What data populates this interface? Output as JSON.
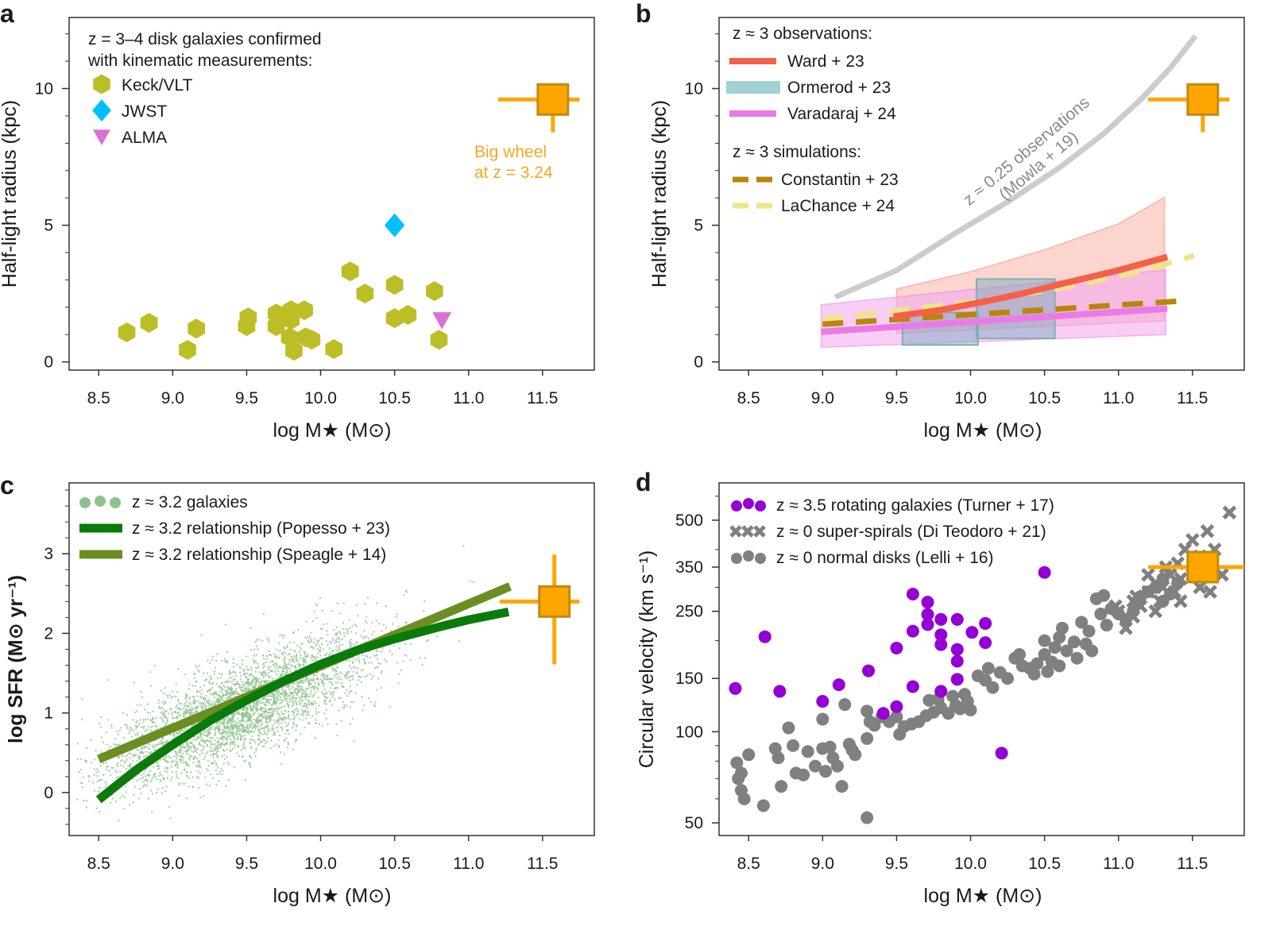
{
  "colors": {
    "keck": "#bdbd26",
    "jwst": "#00bfff",
    "alma": "#da70d6",
    "bigwheel": "#ffa500",
    "bigwheel_edge": "#c08a10",
    "ward": "#f5604a",
    "ward_band": "#f9b3a8",
    "ormerod": "#8cc4c8",
    "varadaraj": "#e97be6",
    "varadaraj_band": "#f2a6f0",
    "constantin": "#b8860b",
    "lachance": "#efe48c",
    "mowla": "#cccccc",
    "scatter": "#8fc08f",
    "popesso": "#0a7a0a",
    "speagle": "#6b8e23",
    "turner": "#9400d3",
    "lelli": "#808080",
    "diteodoro": "#808080"
  },
  "panels": {
    "a": {
      "letter": "a",
      "xlabel": "log M★ (M⊙)",
      "ylabel": "Half-light radius (kpc)",
      "legend_title_1": "z = 3–4 disk galaxies confirmed",
      "legend_title_2": "with kinematic measurements:",
      "legend": [
        "Keck/VLT",
        "JWST",
        "ALMA"
      ],
      "annotation_1": "Big wheel",
      "annotation_2": "at z = 3.24"
    },
    "b": {
      "letter": "b",
      "xlabel": "log M★ (M⊙)",
      "ylabel": "Half-light radius (kpc)",
      "obs_title": "z ≈ 3 observations:",
      "sim_title": "z ≈ 3 simulations:",
      "legend": [
        "Ward + 23",
        "Ormerod + 23",
        "Varadaraj + 24",
        "Constantin + 23",
        "LaChance + 24"
      ],
      "annotation_1": "z ≈ 0.25 observations",
      "annotation_2": "(Mowla + 19)"
    },
    "c": {
      "letter": "c",
      "xlabel": "log M★ (M⊙)",
      "ylabel": "log SFR (M⊙ yr⁻¹)",
      "legend": [
        "z ≈ 3.2 galaxies",
        "z ≈ 3.2 relationship (Popesso + 23)",
        "z ≈ 3.2 relationship (Speagle + 14)"
      ]
    },
    "d": {
      "letter": "d",
      "xlabel": "log M★ (M⊙)",
      "ylabel": "Circular velocity (km s⁻¹)",
      "legend": [
        "z ≈ 3.5 rotating galaxies (Turner + 17)",
        "z ≈ 0 super-spirals (Di Teodoro + 21)",
        "z ≈ 0 normal disks (Lelli + 16)"
      ]
    }
  },
  "chart_data": [
    {
      "id": "a",
      "type": "scatter",
      "xlim": [
        8.3,
        11.85
      ],
      "ylim": [
        -0.3,
        12.6
      ],
      "xticks": [
        "8.5",
        "9.0",
        "9.5",
        "10.0",
        "10.5",
        "11.0",
        "11.5"
      ],
      "yticks": [
        "0",
        "5",
        "10"
      ],
      "yminor_step": 1,
      "series": [
        {
          "name": "Keck/VLT",
          "marker": "hexagon",
          "color": "keck",
          "points": [
            [
              8.69,
              1.08
            ],
            [
              8.84,
              1.43
            ],
            [
              9.1,
              0.44
            ],
            [
              9.16,
              1.22
            ],
            [
              9.51,
              1.63
            ],
            [
              9.5,
              1.31
            ],
            [
              9.7,
              1.77
            ],
            [
              9.7,
              1.31
            ],
            [
              9.8,
              1.89
            ],
            [
              9.89,
              1.89
            ],
            [
              9.8,
              1.54
            ],
            [
              9.79,
              0.9
            ],
            [
              9.82,
              0.41
            ],
            [
              9.9,
              0.9
            ],
            [
              9.94,
              0.81
            ],
            [
              10.09,
              0.47
            ],
            [
              10.2,
              3.31
            ],
            [
              10.3,
              2.5
            ],
            [
              10.5,
              2.82
            ],
            [
              10.5,
              1.6
            ],
            [
              10.59,
              1.72
            ],
            [
              10.77,
              2.59
            ],
            [
              10.8,
              0.81
            ]
          ]
        },
        {
          "name": "JWST",
          "marker": "diamond",
          "color": "jwst",
          "points": [
            [
              10.5,
              5.0
            ]
          ]
        },
        {
          "name": "ALMA",
          "marker": "triangle-down",
          "color": "alma",
          "points": [
            [
              10.82,
              1.54
            ]
          ]
        }
      ],
      "big_wheel": {
        "x": 11.57,
        "y": 9.6,
        "xerr": [
          11.2,
          11.75
        ],
        "yerr": [
          8.4,
          9.6
        ]
      }
    },
    {
      "id": "b",
      "type": "line",
      "xlim": [
        8.3,
        11.85
      ],
      "ylim": [
        -0.3,
        12.6
      ],
      "xticks": [
        "8.5",
        "9.0",
        "9.5",
        "10.0",
        "10.5",
        "11.0",
        "11.5"
      ],
      "yticks": [
        "0",
        "5",
        "10"
      ],
      "yminor_step": 1,
      "mowla": [
        [
          9.085,
          2.37
        ],
        [
          9.5,
          3.35
        ],
        [
          9.89,
          4.69
        ],
        [
          10.25,
          5.85
        ],
        [
          10.61,
          7.14
        ],
        [
          10.9,
          8.35
        ],
        [
          11.15,
          9.6
        ],
        [
          11.35,
          10.75
        ],
        [
          11.52,
          11.92
        ]
      ],
      "ward": {
        "line": [
          [
            9.48,
            1.66
          ],
          [
            9.8,
            1.9
          ],
          [
            10.07,
            2.18
          ],
          [
            10.35,
            2.5
          ],
          [
            10.61,
            2.85
          ],
          [
            11.0,
            3.35
          ],
          [
            11.33,
            3.84
          ]
        ],
        "upper": [
          [
            9.5,
            2.66
          ],
          [
            10.0,
            3.3
          ],
          [
            10.5,
            4.1
          ],
          [
            11.0,
            5.05
          ],
          [
            11.31,
            6.01
          ]
        ],
        "lower": [
          [
            9.5,
            1.05
          ],
          [
            11.31,
            1.5
          ]
        ]
      },
      "ormerod": [
        {
          "x": [
            9.54,
            10.05
          ],
          "y": [
            0.62,
            1.81
          ]
        },
        {
          "x": [
            10.04,
            10.57
          ],
          "y": [
            0.86,
            3.03
          ]
        }
      ],
      "varadaraj": {
        "line": [
          [
            8.99,
            1.1
          ],
          [
            11.33,
            1.95
          ]
        ],
        "upper": [
          [
            8.99,
            2.09
          ],
          [
            11.32,
            3.36
          ]
        ],
        "lower": [
          [
            8.99,
            0.53
          ],
          [
            11.32,
            1.0
          ]
        ]
      },
      "constantin": [
        [
          9.0,
          1.38
        ],
        [
          11.43,
          2.23
        ]
      ],
      "lachance": [
        [
          9.0,
          1.57
        ],
        [
          10.07,
          2.23
        ],
        [
          10.61,
          2.7
        ],
        [
          11.1,
          3.25
        ],
        [
          11.51,
          3.88
        ]
      ],
      "big_wheel": {
        "x": 11.57,
        "y": 9.6,
        "xerr": [
          11.2,
          11.75
        ],
        "yerr": [
          8.4,
          9.6
        ]
      }
    },
    {
      "id": "c",
      "type": "scatter",
      "xlim": [
        8.3,
        11.85
      ],
      "ylim": [
        -0.54,
        3.89
      ],
      "xticks": [
        "8.5",
        "9.0",
        "9.5",
        "10.0",
        "10.5",
        "11.0",
        "11.5"
      ],
      "yticks": [
        "0",
        "1",
        "2",
        "3"
      ],
      "yminor_step": 0.2,
      "popesso": [
        [
          8.5,
          -0.09
        ],
        [
          8.75,
          0.28
        ],
        [
          9.0,
          0.6
        ],
        [
          9.25,
          0.9
        ],
        [
          9.5,
          1.16
        ],
        [
          9.75,
          1.4
        ],
        [
          10.0,
          1.61
        ],
        [
          10.25,
          1.79
        ],
        [
          10.5,
          1.93
        ],
        [
          10.8,
          2.08
        ],
        [
          11.0,
          2.17
        ],
        [
          11.27,
          2.27
        ]
      ],
      "speagle": [
        [
          8.5,
          0.42
        ],
        [
          11.28,
          2.59
        ]
      ],
      "galaxies_distribution": {
        "x_range": [
          8.3,
          11.3
        ],
        "scatter_dex": 0.3
      },
      "big_wheel": {
        "x": 11.58,
        "y": 2.4,
        "xerr": [
          11.21,
          11.75
        ],
        "yerr": [
          1.61,
          2.99
        ]
      }
    },
    {
      "id": "d",
      "type": "scatter",
      "ylog": true,
      "xlim": [
        8.3,
        11.85
      ],
      "ylim": [
        45.4,
        664
      ],
      "xticks": [
        "8.5",
        "9.0",
        "9.5",
        "10.0",
        "10.5",
        "11.0",
        "11.5"
      ],
      "yticks": [
        "50",
        "100",
        "150",
        "250",
        "350",
        "500"
      ],
      "yminor": [
        60,
        70,
        80,
        90,
        200,
        300,
        400,
        600
      ],
      "turner": [
        [
          8.41,
          139
        ],
        [
          8.61,
          206
        ],
        [
          8.71,
          136
        ],
        [
          9.0,
          126
        ],
        [
          9.11,
          143
        ],
        [
          9.31,
          159
        ],
        [
          9.5,
          189
        ],
        [
          9.5,
          121
        ],
        [
          9.61,
          285
        ],
        [
          9.61,
          215
        ],
        [
          9.61,
          141
        ],
        [
          9.71,
          268
        ],
        [
          9.71,
          244
        ],
        [
          9.71,
          226
        ],
        [
          9.8,
          235
        ],
        [
          9.8,
          209
        ],
        [
          9.8,
          194
        ],
        [
          9.91,
          235
        ],
        [
          9.91,
          187
        ],
        [
          9.91,
          171
        ],
        [
          9.91,
          149
        ],
        [
          10.01,
          213
        ],
        [
          10.1,
          228
        ],
        [
          10.1,
          197
        ],
        [
          10.5,
          336
        ],
        [
          10.21,
          85
        ],
        [
          9.8,
          136
        ],
        [
          9.41,
          115
        ]
      ],
      "lelli": [
        [
          8.42,
          79
        ],
        [
          8.43,
          70
        ],
        [
          8.45,
          64
        ],
        [
          8.47,
          60
        ],
        [
          8.5,
          84
        ],
        [
          8.45,
          73
        ],
        [
          8.6,
          57
        ],
        [
          8.68,
          88
        ],
        [
          8.7,
          82
        ],
        [
          8.72,
          66
        ],
        [
          8.77,
          103
        ],
        [
          8.8,
          90
        ],
        [
          8.82,
          73
        ],
        [
          8.87,
          72
        ],
        [
          8.9,
          86
        ],
        [
          8.95,
          77
        ],
        [
          9.0,
          110
        ],
        [
          9.0,
          88
        ],
        [
          9.02,
          74
        ],
        [
          9.05,
          89
        ],
        [
          9.07,
          82
        ],
        [
          9.1,
          77
        ],
        [
          9.13,
          66
        ],
        [
          9.15,
          123
        ],
        [
          9.18,
          91
        ],
        [
          9.2,
          87
        ],
        [
          9.22,
          84
        ],
        [
          9.3,
          52
        ],
        [
          9.3,
          117
        ],
        [
          9.3,
          95
        ],
        [
          9.32,
          108
        ],
        [
          9.35,
          105
        ],
        [
          9.4,
          112
        ],
        [
          9.45,
          108
        ],
        [
          9.5,
          112
        ],
        [
          9.52,
          98
        ],
        [
          9.55,
          104
        ],
        [
          9.6,
          106
        ],
        [
          9.65,
          108
        ],
        [
          9.7,
          113
        ],
        [
          9.72,
          127
        ],
        [
          9.75,
          116
        ],
        [
          9.78,
          128
        ],
        [
          9.8,
          120
        ],
        [
          9.85,
          115
        ],
        [
          9.88,
          131
        ],
        [
          9.9,
          122
        ],
        [
          9.93,
          119
        ],
        [
          9.96,
          133
        ],
        [
          9.98,
          126
        ],
        [
          10.0,
          118
        ],
        [
          10.05,
          153
        ],
        [
          10.1,
          148
        ],
        [
          10.12,
          162
        ],
        [
          10.15,
          140
        ],
        [
          10.2,
          157
        ],
        [
          10.25,
          150
        ],
        [
          10.3,
          175
        ],
        [
          10.33,
          180
        ],
        [
          10.35,
          165
        ],
        [
          10.4,
          162
        ],
        [
          10.43,
          155
        ],
        [
          10.45,
          168
        ],
        [
          10.5,
          180
        ],
        [
          10.5,
          200
        ],
        [
          10.52,
          158
        ],
        [
          10.55,
          170
        ],
        [
          10.57,
          190
        ],
        [
          10.6,
          165
        ],
        [
          10.6,
          205
        ],
        [
          10.62,
          220
        ],
        [
          10.65,
          185
        ],
        [
          10.7,
          198
        ],
        [
          10.72,
          175
        ],
        [
          10.75,
          230
        ],
        [
          10.78,
          195
        ],
        [
          10.8,
          215
        ],
        [
          10.82,
          185
        ],
        [
          10.85,
          275
        ],
        [
          10.88,
          245
        ],
        [
          10.9,
          282
        ],
        [
          10.95,
          255
        ],
        [
          10.92,
          225
        ],
        [
          11.0,
          245
        ],
        [
          11.05,
          235
        ],
        [
          11.1,
          250
        ],
        [
          11.12,
          265
        ],
        [
          11.15,
          280
        ],
        [
          11.2,
          290
        ],
        [
          11.25,
          300
        ],
        [
          11.3,
          270
        ],
        [
          11.35,
          285
        ],
        [
          11.4,
          310
        ],
        [
          11.3,
          320
        ]
      ],
      "diteodoro": [
        [
          11.75,
          530
        ],
        [
          11.6,
          460
        ],
        [
          11.5,
          430
        ],
        [
          11.45,
          400
        ],
        [
          11.55,
          380
        ],
        [
          11.6,
          350
        ],
        [
          11.65,
          400
        ],
        [
          11.7,
          330
        ],
        [
          11.4,
          360
        ],
        [
          11.35,
          330
        ],
        [
          11.3,
          300
        ],
        [
          11.25,
          310
        ],
        [
          11.2,
          290
        ],
        [
          11.15,
          260
        ],
        [
          11.1,
          240
        ],
        [
          11.05,
          220
        ],
        [
          11.0,
          250
        ],
        [
          11.12,
          280
        ],
        [
          11.28,
          270
        ],
        [
          11.32,
          350
        ],
        [
          11.38,
          290
        ],
        [
          11.42,
          320
        ],
        [
          11.5,
          330
        ],
        [
          11.55,
          300
        ],
        [
          11.62,
          290
        ],
        [
          11.2,
          330
        ],
        [
          11.25,
          250
        ],
        [
          11.1,
          270
        ],
        [
          10.98,
          260
        ],
        [
          11.42,
          270
        ]
      ],
      "big_wheel": {
        "x": 11.57,
        "y": 350,
        "xerr": [
          11.2,
          11.85
        ],
        "yerr": [
          350,
          350
        ]
      }
    }
  ]
}
